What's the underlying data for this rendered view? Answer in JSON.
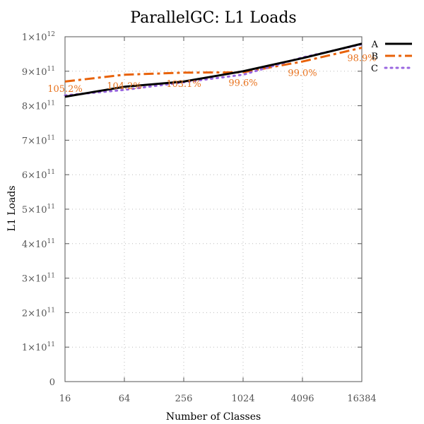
{
  "chart_data": {
    "type": "line",
    "title": "ParallelGC: L1 Loads",
    "xlabel": "Number of Classes",
    "ylabel": "L1 Loads",
    "x_scale": "log2",
    "x": [
      16,
      64,
      256,
      1024,
      4096,
      16384
    ],
    "x_tick_labels": [
      "16",
      "64",
      "256",
      "1024",
      "4096",
      "16384"
    ],
    "ylim": [
      0,
      1000000000000
    ],
    "y_ticks": [
      {
        "value": 0,
        "mant": "0",
        "exp": ""
      },
      {
        "value": 100000000000,
        "mant": "1×10",
        "exp": "11"
      },
      {
        "value": 200000000000,
        "mant": "2×10",
        "exp": "11"
      },
      {
        "value": 300000000000,
        "mant": "3×10",
        "exp": "11"
      },
      {
        "value": 400000000000,
        "mant": "4×10",
        "exp": "11"
      },
      {
        "value": 500000000000,
        "mant": "5×10",
        "exp": "11"
      },
      {
        "value": 600000000000,
        "mant": "6×10",
        "exp": "11"
      },
      {
        "value": 700000000000,
        "mant": "7×10",
        "exp": "11"
      },
      {
        "value": 800000000000,
        "mant": "8×10",
        "exp": "11"
      },
      {
        "value": 900000000000,
        "mant": "9×10",
        "exp": "11"
      },
      {
        "value": 1000000000000,
        "mant": "1×10",
        "exp": "12"
      }
    ],
    "grid": true,
    "legend_position": "top-right",
    "series": [
      {
        "name": "A",
        "color": "#000000",
        "dash": "solid",
        "values": [
          826000000000,
          855000000000,
          870000000000,
          900000000000,
          938000000000,
          980000000000
        ]
      },
      {
        "name": "B",
        "color": "#e8620a",
        "dash": "dashdot",
        "values": [
          870000000000,
          890000000000,
          896000000000,
          897000000000,
          928000000000,
          968000000000
        ]
      },
      {
        "name": "C",
        "color": "#9966e0",
        "dash": "dotted",
        "values": [
          830000000000,
          846000000000,
          868000000000,
          890000000000,
          940000000000,
          978000000000
        ]
      }
    ],
    "annotations": [
      {
        "x": 16,
        "text": "105.2%",
        "y": 840000000000
      },
      {
        "x": 64,
        "text": "104.2%",
        "y": 848000000000
      },
      {
        "x": 256,
        "text": "103.1%",
        "y": 855000000000
      },
      {
        "x": 1024,
        "text": "99.6%",
        "y": 858000000000
      },
      {
        "x": 4096,
        "text": "99.0%",
        "y": 886000000000
      },
      {
        "x": 16384,
        "text": "98.9%",
        "y": 929000000000
      }
    ]
  }
}
